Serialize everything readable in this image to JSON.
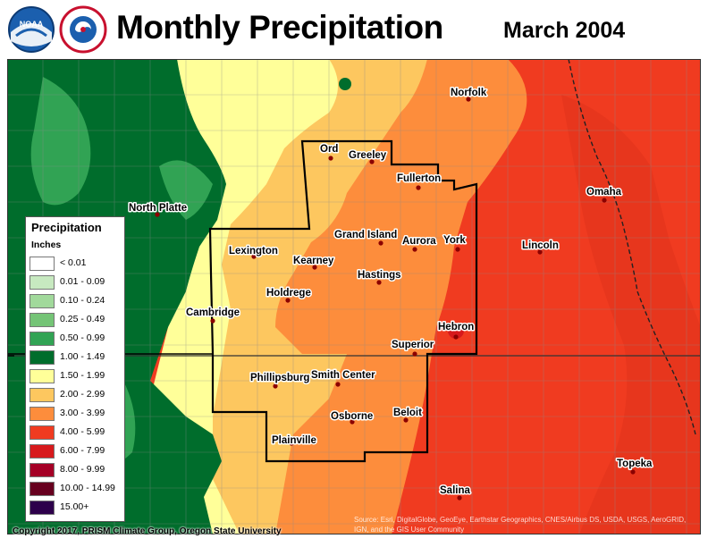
{
  "header": {
    "title": "Monthly Precipitation",
    "period": "March 2004",
    "logos": [
      {
        "name": "noaa-logo",
        "text": "NOAA"
      },
      {
        "name": "nws-logo",
        "text": "NATIONAL WEATHER SERVICE"
      }
    ]
  },
  "legend": {
    "title": "Precipitation",
    "units": "Inches",
    "classes": [
      {
        "label": "< 0.01",
        "color": "#ffffff"
      },
      {
        "label": "0.01 - 0.09",
        "color": "#c7e9c0"
      },
      {
        "label": "0.10 - 0.24",
        "color": "#a1d99b"
      },
      {
        "label": "0.25 - 0.49",
        "color": "#74c476"
      },
      {
        "label": "0.50 - 0.99",
        "color": "#31a354"
      },
      {
        "label": "1.00 - 1.49",
        "color": "#006d2c"
      },
      {
        "label": "1.50 - 1.99",
        "color": "#ffff99"
      },
      {
        "label": "2.00 - 2.99",
        "color": "#fdc75f"
      },
      {
        "label": "3.00 - 3.99",
        "color": "#fd8d3c"
      },
      {
        "label": "4.00 - 5.99",
        "color": "#f03b20"
      },
      {
        "label": "6.00 - 7.99",
        "color": "#d7191c"
      },
      {
        "label": "8.00 - 9.99",
        "color": "#a50026"
      },
      {
        "label": "10.00 - 14.99",
        "color": "#67001f"
      },
      {
        "label": "15.00+",
        "color": "#2d004b"
      }
    ]
  },
  "cities": [
    {
      "name": "Norfolk"
    },
    {
      "name": "Ord"
    },
    {
      "name": "Greeley"
    },
    {
      "name": "Fullerton"
    },
    {
      "name": "North Platte"
    },
    {
      "name": "Omaha"
    },
    {
      "name": "Grand Island"
    },
    {
      "name": "Aurora"
    },
    {
      "name": "York"
    },
    {
      "name": "Lexington"
    },
    {
      "name": "Lincoln"
    },
    {
      "name": "Kearney"
    },
    {
      "name": "Hastings"
    },
    {
      "name": "Holdrege"
    },
    {
      "name": "Cambridge"
    },
    {
      "name": "Hebron"
    },
    {
      "name": "Superior"
    },
    {
      "name": "Phillipsburg"
    },
    {
      "name": "Smith Center"
    },
    {
      "name": "Osborne"
    },
    {
      "name": "Beloit"
    },
    {
      "name": "Plainville"
    },
    {
      "name": "Topeka"
    },
    {
      "name": "Salina"
    }
  ],
  "copyright": "Copyright 2017, PRISM Climate Group, Oregon State University",
  "sources": "Source: Esri, DigitalGlobe, GeoEye, Earthstar Geographics, CNES/Airbus DS, USDA, USGS, AeroGRID, IGN, and the GIS User Community"
}
